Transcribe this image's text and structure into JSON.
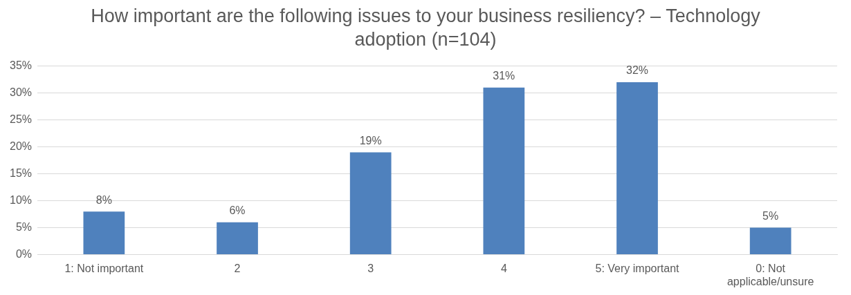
{
  "chart_data": {
    "type": "bar",
    "title": "How important are the following issues to your business resiliency? – Technology adoption (n=104)",
    "categories": [
      "1: Not important",
      "2",
      "3",
      "4",
      "5: Very important",
      "0: Not applicable/unsure"
    ],
    "values": [
      8,
      6,
      19,
      31,
      32,
      5
    ],
    "color": "#4f81bd",
    "ylim": [
      0,
      35
    ],
    "yticks": [
      {
        "value": 0,
        "label": "0%"
      },
      {
        "value": 5,
        "label": "5%"
      },
      {
        "value": 10,
        "label": "10%"
      },
      {
        "value": 15,
        "label": "15%"
      },
      {
        "value": 20,
        "label": "20%"
      },
      {
        "value": 25,
        "label": "25%"
      },
      {
        "value": 30,
        "label": "30%"
      },
      {
        "value": 35,
        "label": "35%"
      }
    ],
    "value_labels": [
      "8%",
      "6%",
      "19%",
      "31%",
      "32%",
      "5%"
    ],
    "grid": "y",
    "legend": false
  }
}
